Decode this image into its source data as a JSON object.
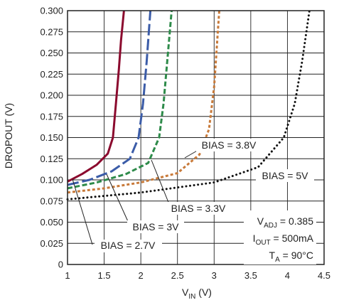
{
  "chart_data": {
    "type": "line",
    "xlabel_main": "V",
    "xlabel_sub": "IN",
    "xlabel_unit": " (V)",
    "ylabel": "DROPOUT (V)",
    "xlim": [
      1,
      4.5
    ],
    "ylim": [
      0,
      0.3
    ],
    "x_ticks": [
      "1",
      "1.5",
      "2",
      "2.5",
      "3",
      "3.5",
      "4",
      "4.5"
    ],
    "y_ticks": [
      "0",
      "0.025",
      "0.050",
      "0.075",
      "0.100",
      "0.125",
      "0.150",
      "0.175",
      "0.200",
      "0.225",
      "0.250",
      "0.275",
      "0.300"
    ],
    "grid": true,
    "series": [
      {
        "name": "BIAS = 2.7V",
        "color": "#8b0a2e",
        "style": "solid",
        "x": [
          1.0,
          1.2,
          1.4,
          1.55,
          1.62,
          1.66,
          1.7,
          1.73,
          1.77
        ],
        "y": [
          0.098,
          0.107,
          0.118,
          0.131,
          0.15,
          0.19,
          0.23,
          0.265,
          0.3
        ]
      },
      {
        "name": "BIAS = 3V",
        "color": "#3b5ca8",
        "style": "longdash",
        "x": [
          1.0,
          1.3,
          1.6,
          1.85,
          1.97,
          2.03,
          2.08,
          2.13
        ],
        "y": [
          0.094,
          0.1,
          0.11,
          0.125,
          0.15,
          0.19,
          0.24,
          0.3
        ]
      },
      {
        "name": "BIAS = 3.3V",
        "color": "#2e8b4a",
        "style": "dash",
        "x": [
          1.0,
          1.4,
          1.8,
          2.1,
          2.25,
          2.31,
          2.36,
          2.42
        ],
        "y": [
          0.09,
          0.097,
          0.107,
          0.12,
          0.15,
          0.19,
          0.24,
          0.3
        ]
      },
      {
        "name": "BIAS = 3.8V",
        "color": "#c87a3a",
        "style": "shortdash",
        "x": [
          1.0,
          1.5,
          2.0,
          2.5,
          2.8,
          2.93,
          3.0,
          3.07
        ],
        "y": [
          0.085,
          0.09,
          0.097,
          0.108,
          0.13,
          0.16,
          0.21,
          0.3
        ]
      },
      {
        "name": "BIAS = 5V",
        "color": "#111111",
        "style": "dotted",
        "x": [
          1.0,
          2.0,
          3.0,
          3.6,
          3.95,
          4.1,
          4.2,
          4.3
        ],
        "y": [
          0.077,
          0.085,
          0.097,
          0.115,
          0.15,
          0.19,
          0.24,
          0.3
        ]
      }
    ],
    "conditions": {
      "line1_main": "V",
      "line1_sub": "ADJ",
      "line1_rest": " = 0.385",
      "line2_main": "I",
      "line2_sub": "OUT",
      "line2_rest": " = 500mA",
      "line3_main": "T",
      "line3_sub": "A",
      "line3_rest": " = 90°C"
    }
  }
}
